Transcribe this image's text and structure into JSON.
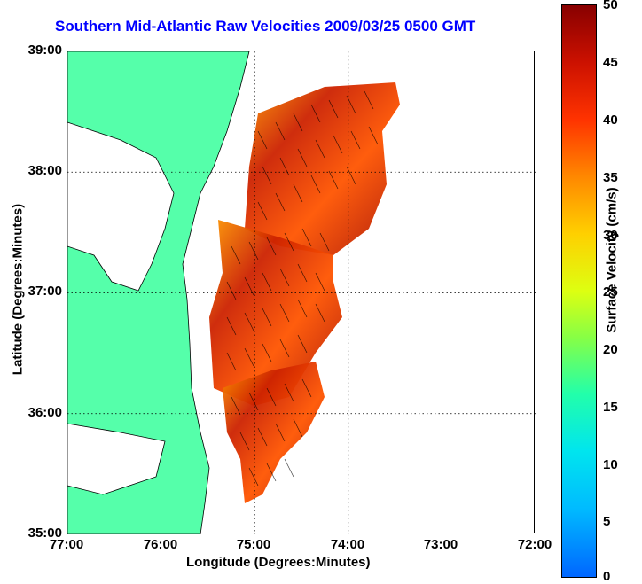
{
  "title": "Southern Mid-Atlantic Raw Velocities 2009/03/25 0500 GMT",
  "axes": {
    "xlabel": "Longitude (Degrees:Minutes)",
    "ylabel": "Latitude (Degrees:Minutes)",
    "xticks": [
      "77:00",
      "76:00",
      "75:00",
      "74:00",
      "73:00",
      "72:00"
    ],
    "yticks": [
      "39:00",
      "38:00",
      "37:00",
      "36:00",
      "35:00"
    ],
    "xlim": [
      -77,
      -72
    ],
    "ylim": [
      35,
      39
    ],
    "grid": "dotted"
  },
  "colorbar": {
    "label": "Surface Velocity (cm/s)",
    "ticks": [
      "50",
      "45",
      "40",
      "35",
      "30",
      "25",
      "20",
      "15",
      "10",
      "5",
      "0"
    ],
    "range": [
      0,
      50
    ]
  },
  "colors": {
    "land": "#55ffaa",
    "title": "#0000ff"
  }
}
